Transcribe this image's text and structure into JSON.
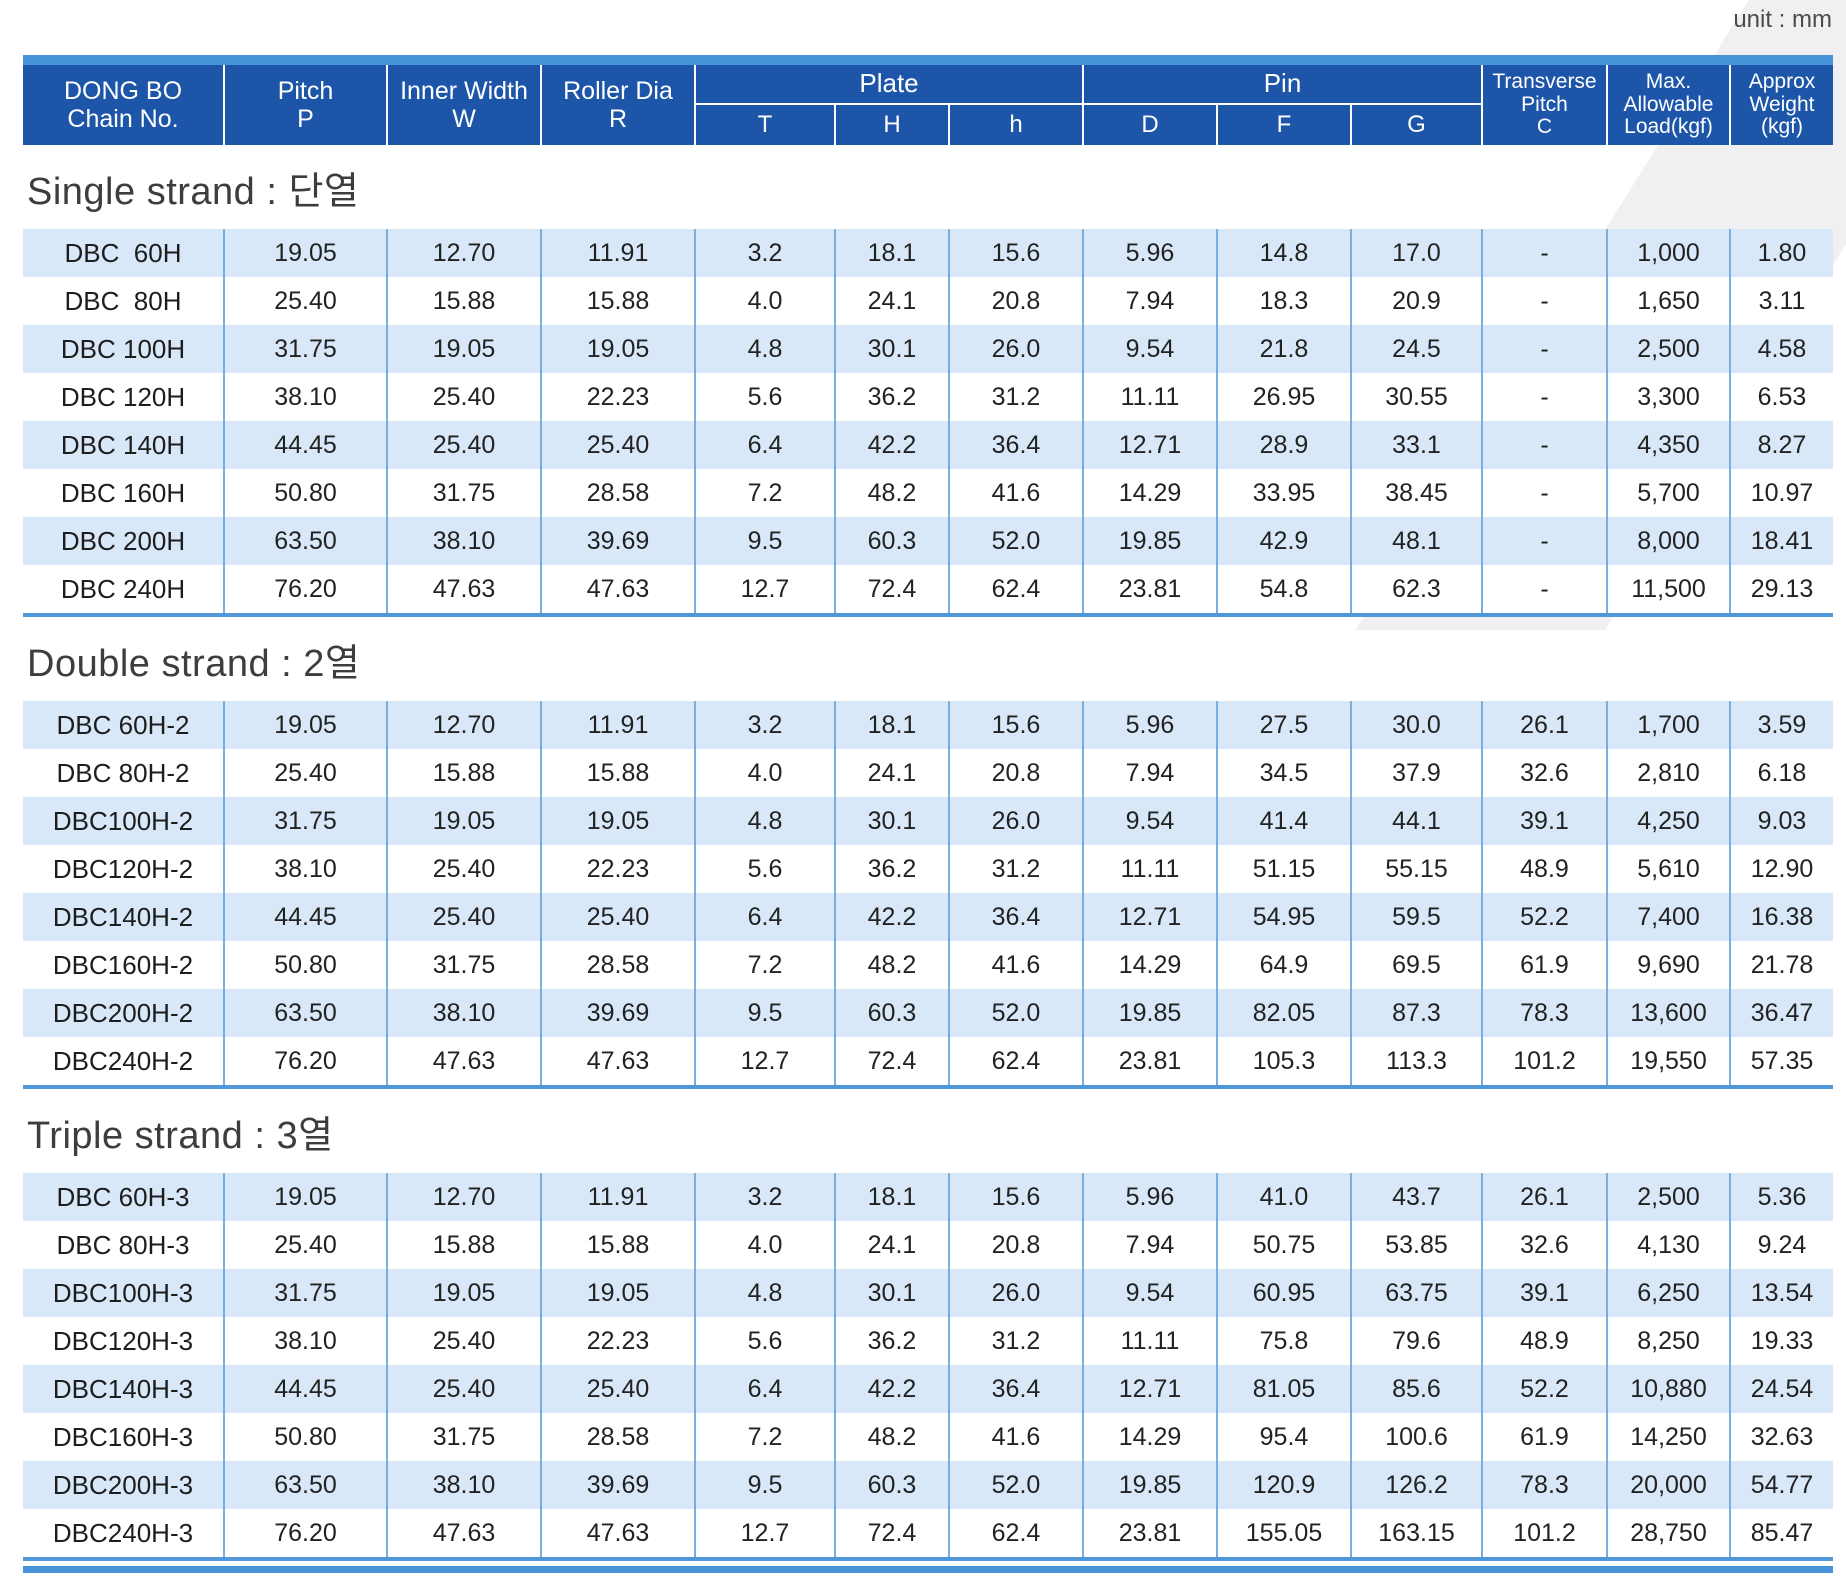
{
  "unit_label": "unit : mm",
  "table": {
    "header": {
      "chain": [
        "DONG BO",
        "Chain No."
      ],
      "pitch": [
        "Pitch",
        "P"
      ],
      "inner_width": [
        "Inner Width",
        "W"
      ],
      "roller_dia": [
        "Roller Dia",
        "R"
      ],
      "plate": {
        "label": "Plate",
        "subs": [
          "T",
          "H",
          "h"
        ]
      },
      "pin": {
        "label": "Pin",
        "subs": [
          "D",
          "F",
          "G"
        ]
      },
      "transverse": [
        "Transverse",
        "Pitch",
        "C"
      ],
      "max_load": [
        "Max.",
        "Allowable",
        "Load(kgf)"
      ],
      "approx_weight": [
        "Approx",
        "Weight",
        "(kgf)"
      ]
    },
    "sections": [
      {
        "title": "Single strand : 단열",
        "rows": [
          [
            "DBC  60H",
            "19.05",
            "12.70",
            "11.91",
            "3.2",
            "18.1",
            "15.6",
            "5.96",
            "14.8",
            "17.0",
            "-",
            "1,000",
            "1.80"
          ],
          [
            "DBC  80H",
            "25.40",
            "15.88",
            "15.88",
            "4.0",
            "24.1",
            "20.8",
            "7.94",
            "18.3",
            "20.9",
            "-",
            "1,650",
            "3.11"
          ],
          [
            "DBC 100H",
            "31.75",
            "19.05",
            "19.05",
            "4.8",
            "30.1",
            "26.0",
            "9.54",
            "21.8",
            "24.5",
            "-",
            "2,500",
            "4.58"
          ],
          [
            "DBC 120H",
            "38.10",
            "25.40",
            "22.23",
            "5.6",
            "36.2",
            "31.2",
            "11.11",
            "26.95",
            "30.55",
            "-",
            "3,300",
            "6.53"
          ],
          [
            "DBC 140H",
            "44.45",
            "25.40",
            "25.40",
            "6.4",
            "42.2",
            "36.4",
            "12.71",
            "28.9",
            "33.1",
            "-",
            "4,350",
            "8.27"
          ],
          [
            "DBC 160H",
            "50.80",
            "31.75",
            "28.58",
            "7.2",
            "48.2",
            "41.6",
            "14.29",
            "33.95",
            "38.45",
            "-",
            "5,700",
            "10.97"
          ],
          [
            "DBC 200H",
            "63.50",
            "38.10",
            "39.69",
            "9.5",
            "60.3",
            "52.0",
            "19.85",
            "42.9",
            "48.1",
            "-",
            "8,000",
            "18.41"
          ],
          [
            "DBC 240H",
            "76.20",
            "47.63",
            "47.63",
            "12.7",
            "72.4",
            "62.4",
            "23.81",
            "54.8",
            "62.3",
            "-",
            "11,500",
            "29.13"
          ]
        ]
      },
      {
        "title": "Double strand : 2열",
        "rows": [
          [
            "DBC 60H-2",
            "19.05",
            "12.70",
            "11.91",
            "3.2",
            "18.1",
            "15.6",
            "5.96",
            "27.5",
            "30.0",
            "26.1",
            "1,700",
            "3.59"
          ],
          [
            "DBC 80H-2",
            "25.40",
            "15.88",
            "15.88",
            "4.0",
            "24.1",
            "20.8",
            "7.94",
            "34.5",
            "37.9",
            "32.6",
            "2,810",
            "6.18"
          ],
          [
            "DBC100H-2",
            "31.75",
            "19.05",
            "19.05",
            "4.8",
            "30.1",
            "26.0",
            "9.54",
            "41.4",
            "44.1",
            "39.1",
            "4,250",
            "9.03"
          ],
          [
            "DBC120H-2",
            "38.10",
            "25.40",
            "22.23",
            "5.6",
            "36.2",
            "31.2",
            "11.11",
            "51.15",
            "55.15",
            "48.9",
            "5,610",
            "12.90"
          ],
          [
            "DBC140H-2",
            "44.45",
            "25.40",
            "25.40",
            "6.4",
            "42.2",
            "36.4",
            "12.71",
            "54.95",
            "59.5",
            "52.2",
            "7,400",
            "16.38"
          ],
          [
            "DBC160H-2",
            "50.80",
            "31.75",
            "28.58",
            "7.2",
            "48.2",
            "41.6",
            "14.29",
            "64.9",
            "69.5",
            "61.9",
            "9,690",
            "21.78"
          ],
          [
            "DBC200H-2",
            "63.50",
            "38.10",
            "39.69",
            "9.5",
            "60.3",
            "52.0",
            "19.85",
            "82.05",
            "87.3",
            "78.3",
            "13,600",
            "36.47"
          ],
          [
            "DBC240H-2",
            "76.20",
            "47.63",
            "47.63",
            "12.7",
            "72.4",
            "62.4",
            "23.81",
            "105.3",
            "113.3",
            "101.2",
            "19,550",
            "57.35"
          ]
        ]
      },
      {
        "title": "Triple strand : 3열",
        "rows": [
          [
            "DBC 60H-3",
            "19.05",
            "12.70",
            "11.91",
            "3.2",
            "18.1",
            "15.6",
            "5.96",
            "41.0",
            "43.7",
            "26.1",
            "2,500",
            "5.36"
          ],
          [
            "DBC 80H-3",
            "25.40",
            "15.88",
            "15.88",
            "4.0",
            "24.1",
            "20.8",
            "7.94",
            "50.75",
            "53.85",
            "32.6",
            "4,130",
            "9.24"
          ],
          [
            "DBC100H-3",
            "31.75",
            "19.05",
            "19.05",
            "4.8",
            "30.1",
            "26.0",
            "9.54",
            "60.95",
            "63.75",
            "39.1",
            "6,250",
            "13.54"
          ],
          [
            "DBC120H-3",
            "38.10",
            "25.40",
            "22.23",
            "5.6",
            "36.2",
            "31.2",
            "11.11",
            "75.8",
            "79.6",
            "48.9",
            "8,250",
            "19.33"
          ],
          [
            "DBC140H-3",
            "44.45",
            "25.40",
            "25.40",
            "6.4",
            "42.2",
            "36.4",
            "12.71",
            "81.05",
            "85.6",
            "52.2",
            "10,880",
            "24.54"
          ],
          [
            "DBC160H-3",
            "50.80",
            "31.75",
            "28.58",
            "7.2",
            "48.2",
            "41.6",
            "14.29",
            "95.4",
            "100.6",
            "61.9",
            "14,250",
            "32.63"
          ],
          [
            "DBC200H-3",
            "63.50",
            "38.10",
            "39.69",
            "9.5",
            "60.3",
            "52.0",
            "19.85",
            "120.9",
            "126.2",
            "78.3",
            "20,000",
            "54.77"
          ],
          [
            "DBC240H-3",
            "76.20",
            "47.63",
            "47.63",
            "12.7",
            "72.4",
            "62.4",
            "23.81",
            "155.05",
            "163.15",
            "101.2",
            "28,750",
            "85.47"
          ]
        ]
      }
    ]
  }
}
